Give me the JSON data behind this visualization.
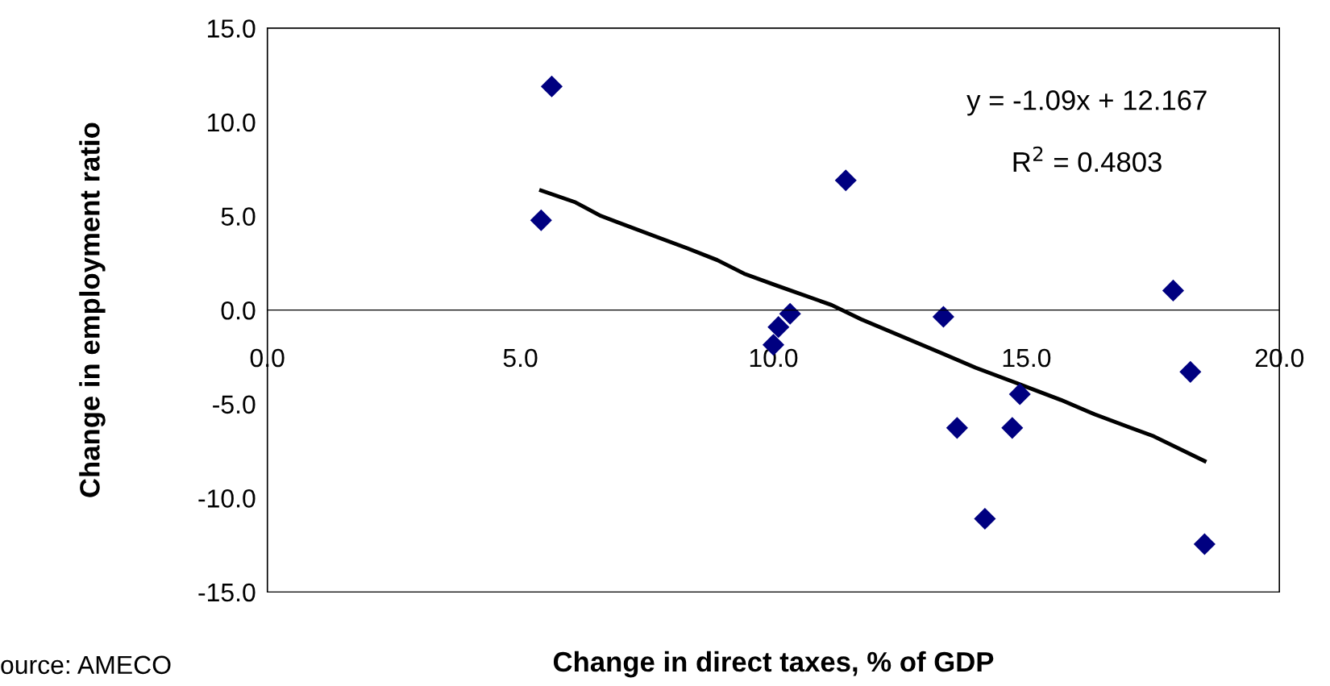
{
  "chart_data": {
    "type": "scatter",
    "xlabel": "Change in direct taxes, % of GDP",
    "ylabel": "Change in employment ratio",
    "annotations": [
      "y = -1.09x + 12.167",
      "R$^{2}$ = 0.4803",
      "ource: AMECO"
    ],
    "series": [
      {
        "color": "#000080",
        "marker": "diamond",
        "x": [
          5.62,
          5.41,
          11.43,
          10.33,
          10.1,
          10.0,
          13.36,
          13.63,
          14.72,
          14.87,
          14.18,
          17.9,
          18.24,
          18.52
        ],
        "values": [
          11.9,
          4.78,
          6.9,
          -0.2,
          -0.9,
          -1.85,
          -0.36,
          -6.27,
          -6.27,
          -4.47,
          -11.1,
          1.04,
          -3.29,
          -12.45
        ]
      },
      {
        "type": "line",
        "color": "#000000",
        "marker": "none",
        "line_style": "solid",
        "x": [
          5.41,
          6.09,
          6.59,
          7.71,
          8.3,
          8.89,
          9.42,
          10.06,
          11.15,
          11.74,
          13.33,
          14.0,
          14.84,
          15.68,
          16.35,
          17.02,
          17.52,
          18.52
        ],
        "values": [
          6.36,
          5.73,
          5.01,
          3.88,
          3.29,
          2.66,
          1.94,
          1.31,
          0.27,
          -0.5,
          -2.3,
          -3.07,
          -3.92,
          -4.78,
          -5.55,
          -6.22,
          -6.72,
          -8.03
        ]
      }
    ],
    "xlim": [
      0,
      20
    ],
    "xticks": [
      {
        "value": 0,
        "label": "0.0"
      },
      {
        "value": 5,
        "label": "5.0"
      },
      {
        "value": 10,
        "label": "10.0"
      },
      {
        "value": 15,
        "label": "15.0"
      },
      {
        "value": 20,
        "label": "20.0"
      }
    ],
    "ylim": [
      -15,
      15
    ],
    "yticks": [
      {
        "value": -15,
        "label": "-15.0"
      },
      {
        "value": -10,
        "label": "-10.0"
      },
      {
        "value": -5,
        "label": "-5.0"
      },
      {
        "value": 0,
        "label": "0.0"
      },
      {
        "value": 5,
        "label": "5.0"
      },
      {
        "value": 10,
        "label": "10.0"
      },
      {
        "value": 15,
        "label": "15.0"
      }
    ],
    "grid": false,
    "legend": false
  }
}
